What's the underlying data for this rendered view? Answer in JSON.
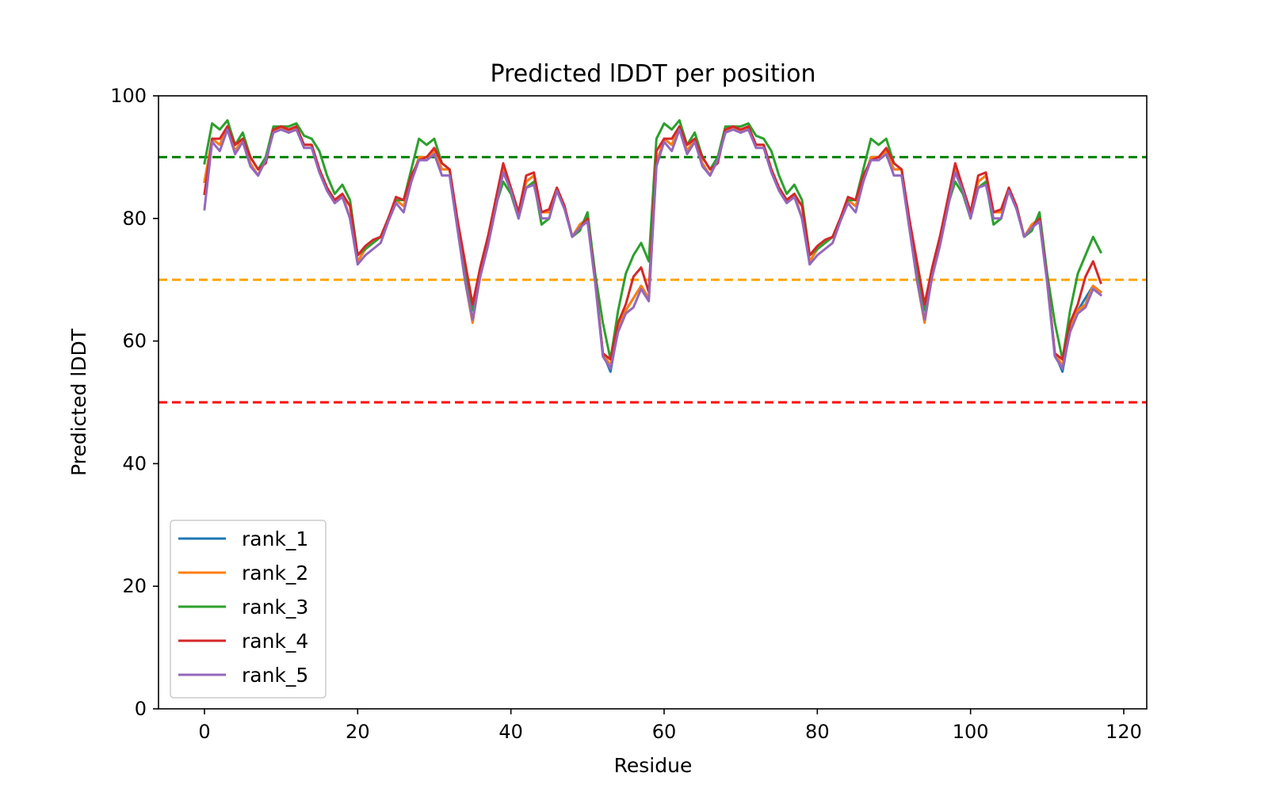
{
  "chart_data": {
    "type": "line",
    "title": "Predicted lDDT per position",
    "xlabel": "Residue",
    "ylabel": "Predicted lDDT",
    "xlim": [
      -6,
      123
    ],
    "ylim": [
      0,
      100
    ],
    "xticks": [
      0,
      20,
      40,
      60,
      80,
      100,
      120
    ],
    "yticks": [
      0,
      20,
      40,
      60,
      80,
      100
    ],
    "grid": false,
    "legend_position": "lower-left",
    "reference_lines": [
      {
        "y": 90,
        "color": "#008000",
        "style": "dashed"
      },
      {
        "y": 70,
        "color": "#ffa500",
        "style": "dashed"
      },
      {
        "y": 50,
        "color": "#ff0000",
        "style": "dashed"
      }
    ],
    "series": [
      {
        "name": "rank_1",
        "color": "#1f77b4",
        "values": [
          86,
          93,
          92,
          95,
          91,
          93,
          89,
          87,
          90,
          94,
          95,
          94,
          95,
          92,
          92,
          88,
          85,
          83,
          84,
          80,
          73,
          75,
          76,
          77,
          80,
          83,
          82,
          86,
          90,
          90,
          91,
          88,
          88,
          79,
          70,
          63,
          71,
          76,
          82,
          88,
          85,
          81,
          86,
          87,
          81,
          81,
          85,
          82,
          77,
          79,
          80,
          70,
          58,
          55,
          62,
          65,
          67,
          69,
          67,
          89,
          93,
          92,
          95,
          91,
          93,
          89,
          87,
          90,
          94,
          95,
          94,
          95,
          92,
          92,
          88,
          85,
          83,
          84,
          80,
          73,
          75,
          76,
          77,
          80,
          83,
          82,
          86,
          90,
          90,
          91,
          88,
          88,
          79,
          70,
          63,
          71,
          76,
          82,
          88,
          85,
          81,
          86,
          87,
          81,
          81,
          85,
          82,
          77,
          79,
          80,
          70,
          58,
          55,
          62,
          65,
          67,
          69,
          68
        ]
      },
      {
        "name": "rank_2",
        "color": "#ff7f0e",
        "values": [
          86,
          93,
          92,
          95,
          91,
          93,
          89,
          87,
          90,
          94,
          95,
          94,
          95,
          92,
          92,
          88,
          85,
          83,
          84,
          80,
          73,
          75,
          76,
          77,
          80,
          83,
          82,
          86,
          90,
          90,
          91,
          88,
          88,
          79,
          70,
          63,
          71,
          76,
          82,
          88,
          85,
          81,
          86,
          87,
          81,
          81,
          85,
          82,
          77,
          79,
          80,
          70,
          58,
          56,
          62,
          65,
          67,
          69,
          67,
          89,
          93,
          92,
          95,
          91,
          93,
          89,
          87,
          90,
          94,
          95,
          94,
          95,
          92,
          92,
          88,
          85,
          83,
          84,
          80,
          73,
          75,
          76,
          77,
          80,
          83,
          82,
          86,
          90,
          90,
          91,
          88,
          88,
          79,
          70,
          63,
          71,
          76,
          82,
          88,
          85,
          81,
          86,
          87,
          81,
          81,
          85,
          82,
          77,
          79,
          80,
          70,
          58,
          56,
          62,
          65,
          66,
          69,
          68
        ]
      },
      {
        "name": "rank_3",
        "color": "#2ca02c",
        "values": [
          89,
          95.5,
          94.5,
          96,
          92,
          94,
          90,
          88,
          90,
          95,
          95,
          95,
          95.5,
          93.5,
          93,
          91,
          87,
          84,
          85.5,
          83,
          74,
          75,
          76,
          77,
          80,
          83,
          83,
          88,
          93,
          92,
          93,
          89,
          88,
          80,
          71,
          65,
          72,
          77,
          82,
          86,
          84,
          80,
          85,
          86,
          79,
          80,
          85,
          82,
          77,
          78,
          81,
          71,
          63,
          57,
          65,
          71,
          74,
          76,
          73,
          93,
          95.5,
          94.5,
          96,
          92,
          94,
          90,
          88,
          90,
          95,
          95,
          95,
          95.5,
          93.5,
          93,
          91,
          87,
          84,
          85.5,
          83,
          74,
          75,
          76,
          77,
          80,
          83,
          83,
          88,
          93,
          92,
          93,
          89,
          88,
          80,
          71,
          65,
          72,
          77,
          82,
          86,
          84,
          80,
          85,
          86,
          79,
          80,
          85,
          82,
          77,
          78,
          81,
          71,
          63,
          57,
          65,
          71,
          74,
          77,
          74.5
        ]
      },
      {
        "name": "rank_4",
        "color": "#d62728",
        "values": [
          84,
          93,
          93,
          95,
          92,
          93,
          90,
          88,
          89,
          94.5,
          95,
          94.5,
          95,
          92,
          92,
          88,
          85,
          83,
          84,
          82,
          74,
          75.5,
          76.5,
          77,
          80,
          83.5,
          83,
          87,
          89.5,
          90,
          91.5,
          89,
          88,
          80,
          73,
          66,
          72,
          77,
          83,
          89,
          85,
          81,
          87,
          87.5,
          81,
          81.5,
          85,
          82,
          77,
          78.5,
          80,
          70,
          58,
          57,
          63,
          66,
          70.5,
          72,
          68,
          91,
          93,
          93,
          95,
          92,
          93,
          90,
          88,
          89,
          94.5,
          95,
          94.5,
          95,
          92,
          92,
          88,
          85,
          83,
          84,
          82,
          74,
          75.5,
          76.5,
          77,
          80,
          83.5,
          83,
          87,
          89.5,
          90,
          91.5,
          89,
          88,
          80,
          73,
          66,
          72,
          77,
          83,
          89,
          85,
          81,
          87,
          87.5,
          81,
          81.5,
          85,
          82,
          77,
          78.5,
          80,
          70,
          58,
          57,
          63,
          66,
          70.5,
          73,
          69.5
        ]
      },
      {
        "name": "rank_5",
        "color": "#9467bd",
        "values": [
          81.5,
          92.5,
          91,
          94.5,
          90.5,
          92.5,
          88.5,
          87,
          89.5,
          94,
          94.5,
          94,
          94.5,
          91.5,
          91.5,
          87.5,
          84.5,
          82.5,
          83.5,
          80,
          72.5,
          74,
          75,
          76,
          79.5,
          82.5,
          81,
          86,
          89.5,
          89.5,
          90.5,
          87,
          87,
          78.5,
          70,
          63.5,
          70.5,
          75.5,
          81.5,
          87.5,
          84.5,
          80,
          85,
          85.5,
          80,
          80,
          84.5,
          81.5,
          77,
          78.5,
          79.5,
          69.5,
          57.5,
          55.5,
          61.5,
          64.5,
          65.5,
          68.5,
          66.5,
          88.5,
          92.5,
          91,
          94.5,
          90.5,
          92.5,
          88.5,
          87,
          89.5,
          94,
          94.5,
          94,
          94.5,
          91.5,
          91.5,
          87.5,
          84.5,
          82.5,
          83.5,
          80,
          72.5,
          74,
          75,
          76,
          79.5,
          82.5,
          81,
          86,
          89.5,
          89.5,
          90.5,
          87,
          87,
          78.5,
          70,
          63.5,
          70.5,
          75.5,
          81.5,
          87.5,
          84.5,
          80,
          85,
          85.5,
          80,
          80,
          84.5,
          81.5,
          77,
          78.5,
          79.5,
          69.5,
          57.5,
          55.5,
          61.5,
          64.5,
          65.5,
          68.5,
          67.5
        ]
      }
    ]
  }
}
